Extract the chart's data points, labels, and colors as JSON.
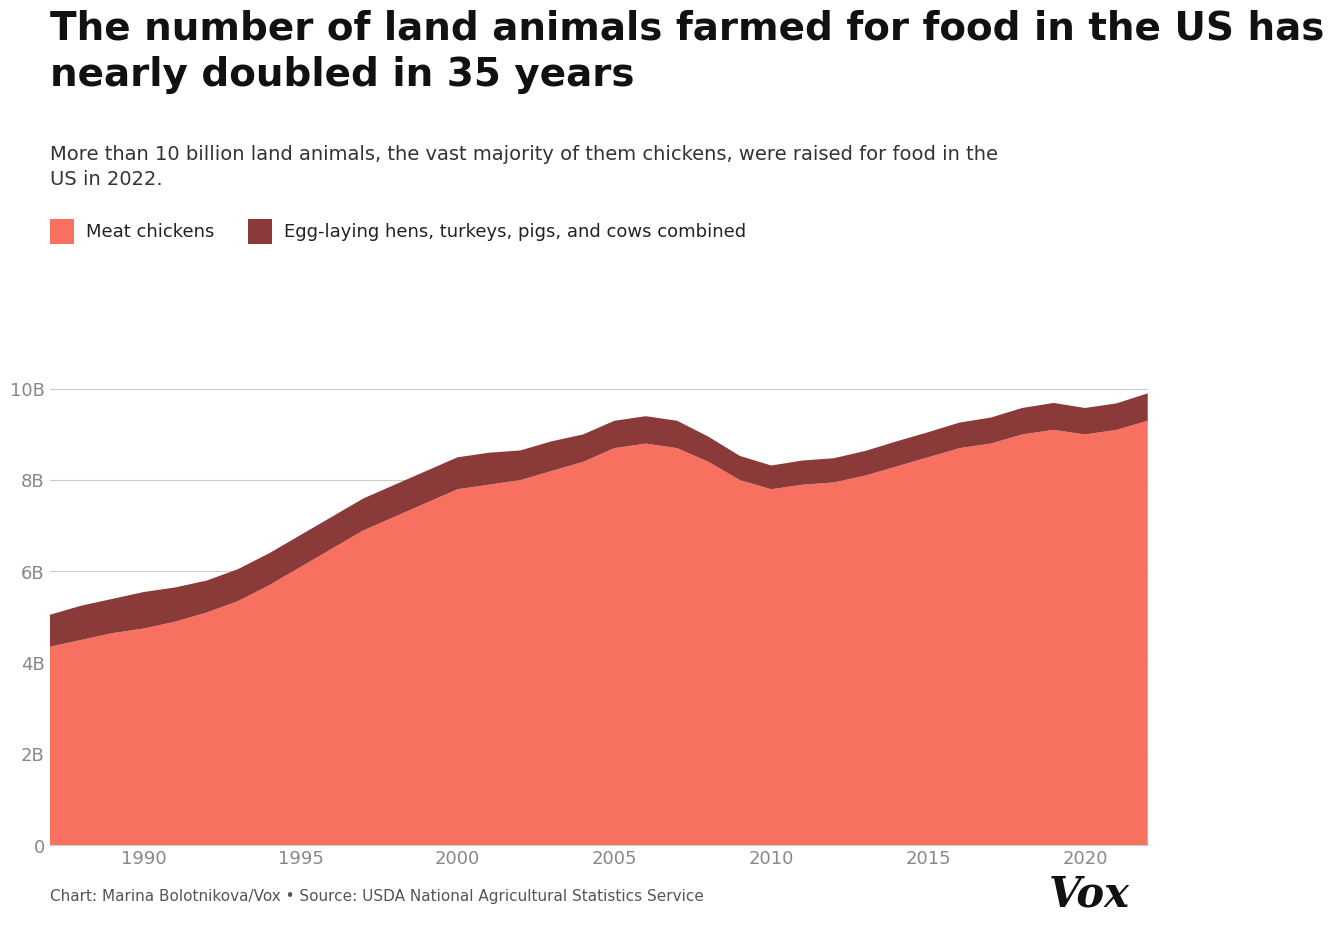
{
  "title": "The number of land animals farmed for food in the US has\nnearly doubled in 35 years",
  "subtitle": "More than 10 billion land animals, the vast majority of them chickens, were raised for food in the\nUS in 2022.",
  "legend_labels": [
    "Meat chickens",
    "Egg-laying hens, turkeys, pigs, and cows combined"
  ],
  "colors": [
    "#F87060",
    "#8B3A3A"
  ],
  "footnote": "Chart: Marina Bolotnikova/Vox • Source: USDA National Agricultural Statistics Service",
  "years": [
    1987,
    1988,
    1989,
    1990,
    1991,
    1992,
    1993,
    1994,
    1995,
    1996,
    1997,
    1998,
    1999,
    2000,
    2001,
    2002,
    2003,
    2004,
    2005,
    2006,
    2007,
    2008,
    2009,
    2010,
    2011,
    2012,
    2013,
    2014,
    2015,
    2016,
    2017,
    2018,
    2019,
    2020,
    2021,
    2022
  ],
  "meat_chickens": [
    4350,
    4500,
    4650,
    4750,
    4900,
    5100,
    5350,
    5700,
    6100,
    6500,
    6900,
    7200,
    7500,
    7800,
    7900,
    8000,
    8200,
    8400,
    8700,
    8800,
    8700,
    8400,
    8000,
    7800,
    7900,
    7950,
    8100,
    8300,
    8500,
    8700,
    8800,
    9000,
    9100,
    9000,
    9100,
    9300
  ],
  "other_animals": [
    700,
    750,
    750,
    800,
    750,
    700,
    700,
    700,
    700,
    700,
    700,
    700,
    700,
    700,
    700,
    650,
    650,
    600,
    600,
    600,
    600,
    550,
    530,
    520,
    530,
    530,
    540,
    550,
    550,
    560,
    570,
    580,
    590,
    580,
    580,
    600
  ],
  "ylim": [
    0,
    11000
  ],
  "yticks": [
    0,
    2000,
    4000,
    6000,
    8000,
    10000
  ],
  "ytick_labels": [
    "0",
    "2B",
    "4B",
    "6B",
    "8B",
    "10B"
  ],
  "xticks": [
    1990,
    1995,
    2000,
    2005,
    2010,
    2015,
    2020
  ],
  "xlim": [
    1987,
    2022
  ],
  "bg_color": "#FFFFFF",
  "grid_color": "#CCCCCC",
  "tick_color": "#888888",
  "title_fontsize": 28,
  "subtitle_fontsize": 14,
  "tick_fontsize": 13,
  "legend_fontsize": 13,
  "footnote_fontsize": 11,
  "vox_fontsize": 30
}
